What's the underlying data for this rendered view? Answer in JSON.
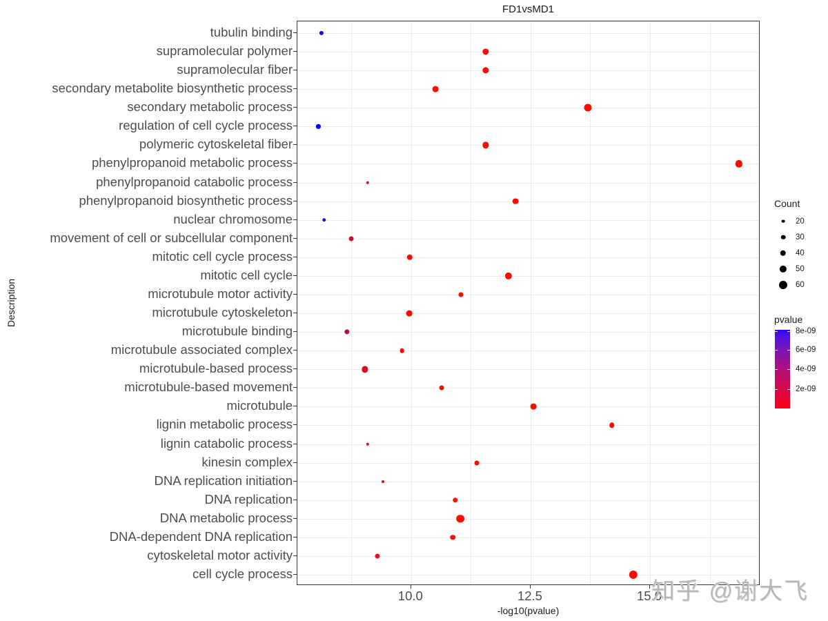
{
  "chart_data": {
    "type": "scatter",
    "title": "FD1vsMD1",
    "xlabel": "-log10(pvalue)",
    "ylabel": "Description",
    "xlim": [
      7.62,
      17.31
    ],
    "x_ticks": [
      10.0,
      12.5,
      15.0
    ],
    "x_tick_labels": [
      "10.0",
      "12.5",
      "15.0"
    ],
    "grid": true,
    "legend_position": "right",
    "size_legend": {
      "title": "Count",
      "values": [
        20,
        30,
        40,
        50,
        60
      ]
    },
    "color_legend": {
      "title": "pvalue",
      "ticks": [
        "8e-09",
        "6e-09",
        "4e-09",
        "2e-09"
      ],
      "low_color": "#FF0000",
      "high_color": "#0000FF"
    },
    "points": [
      {
        "description": "tubulin binding",
        "x": 8.12,
        "count": 28,
        "pvalue": 7.6e-09
      },
      {
        "description": "supramolecular polymer",
        "x": 11.56,
        "count": 45,
        "pvalue": 2.8e-12
      },
      {
        "description": "supramolecular fiber",
        "x": 11.56,
        "count": 45,
        "pvalue": 2.8e-12
      },
      {
        "description": "secondary metabolite biosynthetic process",
        "x": 10.51,
        "count": 42,
        "pvalue": 3.1e-11
      },
      {
        "description": "secondary metabolic process",
        "x": 13.7,
        "count": 55,
        "pvalue": 2e-14
      },
      {
        "description": "regulation of cell cycle process",
        "x": 8.06,
        "count": 28,
        "pvalue": 8.7e-09
      },
      {
        "description": "polymeric cytoskeletal fiber",
        "x": 11.56,
        "count": 45,
        "pvalue": 2.8e-12
      },
      {
        "description": "phenylpropanoid metabolic process",
        "x": 16.86,
        "count": 50,
        "pvalue": 1.4e-17
      },
      {
        "description": "phenylpropanoid catabolic process",
        "x": 9.09,
        "count": 18,
        "pvalue": 8.1e-10
      },
      {
        "description": "phenylpropanoid biosynthetic process",
        "x": 12.18,
        "count": 42,
        "pvalue": 6.6e-13
      },
      {
        "description": "nuclear chromosome",
        "x": 8.18,
        "count": 24,
        "pvalue": 6.6e-09
      },
      {
        "description": "movement of cell or subcellular component",
        "x": 8.74,
        "count": 32,
        "pvalue": 1.8e-09
      },
      {
        "description": "mitotic cell cycle process",
        "x": 9.97,
        "count": 40,
        "pvalue": 1.1e-10
      },
      {
        "description": "mitotic cell cycle",
        "x": 12.04,
        "count": 50,
        "pvalue": 9.1e-13
      },
      {
        "description": "microtubule motor activity",
        "x": 11.04,
        "count": 32,
        "pvalue": 9.1e-12
      },
      {
        "description": "microtubule cytoskeleton",
        "x": 9.96,
        "count": 42,
        "pvalue": 1.1e-10
      },
      {
        "description": "microtubule binding",
        "x": 8.66,
        "count": 34,
        "pvalue": 2.2e-09
      },
      {
        "description": "microtubule associated complex",
        "x": 9.81,
        "count": 30,
        "pvalue": 1.5e-10
      },
      {
        "description": "microtubule-based process",
        "x": 9.03,
        "count": 45,
        "pvalue": 9.3e-10
      },
      {
        "description": "microtubule-based movement",
        "x": 10.64,
        "count": 32,
        "pvalue": 2.3e-11
      },
      {
        "description": "microtubule",
        "x": 12.56,
        "count": 42,
        "pvalue": 2.8e-13
      },
      {
        "description": "lignin metabolic process",
        "x": 14.2,
        "count": 35,
        "pvalue": 6.3e-15
      },
      {
        "description": "lignin catabolic process",
        "x": 9.09,
        "count": 18,
        "pvalue": 8.1e-10
      },
      {
        "description": "kinesin complex",
        "x": 11.37,
        "count": 32,
        "pvalue": 4.3e-12
      },
      {
        "description": "DNA replication initiation",
        "x": 9.41,
        "count": 15,
        "pvalue": 3.9e-10
      },
      {
        "description": "DNA replication",
        "x": 10.92,
        "count": 35,
        "pvalue": 1.2e-11
      },
      {
        "description": "DNA metabolic process",
        "x": 11.03,
        "count": 58,
        "pvalue": 9.3e-12
      },
      {
        "description": "DNA-dependent DNA replication",
        "x": 10.87,
        "count": 35,
        "pvalue": 1.3e-11
      },
      {
        "description": "cytoskeletal motor activity",
        "x": 9.29,
        "count": 33,
        "pvalue": 5.1e-10
      },
      {
        "description": "cell cycle process",
        "x": 14.65,
        "count": 62,
        "pvalue": 2.2e-15
      }
    ]
  },
  "watermark": "知乎 @谢大飞"
}
